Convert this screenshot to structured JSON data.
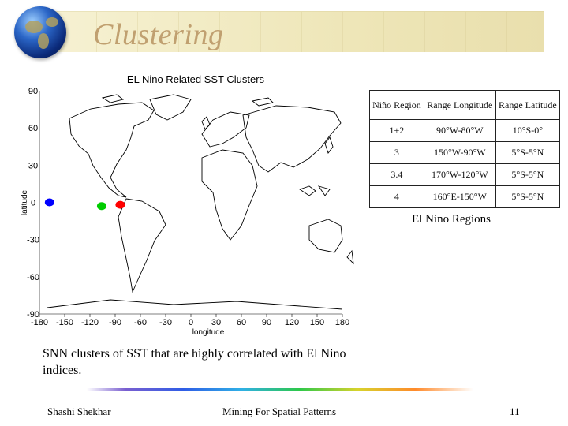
{
  "slide": {
    "title": "Clustering",
    "footer_left": "Shashi Shekhar",
    "footer_center": "Mining For Spatial Patterns",
    "page_number": "11"
  },
  "map": {
    "title": "EL Nino Related SST Clusters",
    "xlabel": "longitude",
    "ylabel": "latitude",
    "x_ticks": [
      "-180",
      "-150",
      "-120",
      "-90",
      "-60",
      "-30",
      "0",
      "30",
      "60",
      "90",
      "120",
      "150",
      "180"
    ],
    "y_ticks": [
      "90",
      "60",
      "30",
      "0",
      "-30",
      "-60",
      "-90"
    ],
    "clusters": [
      {
        "color": "#0000ff",
        "lon": -168,
        "lat": 0
      },
      {
        "color": "#00cc00",
        "lon": -106,
        "lat": -3
      },
      {
        "color": "#ff0000",
        "lon": -84,
        "lat": -2
      }
    ]
  },
  "regions_table": {
    "headers": [
      "Niño Region",
      "Range Longitude",
      "Range Latitude"
    ],
    "rows": [
      [
        "1+2",
        "90°W-80°W",
        "10°S-0°"
      ],
      [
        "3",
        "150°W-90°W",
        "5°S-5°N"
      ],
      [
        "3.4",
        "170°W-120°W",
        "5°S-5°N"
      ],
      [
        "4",
        "160°E-150°W",
        "5°S-5°N"
      ]
    ],
    "caption": "El Nino Regions"
  },
  "snn_caption": "SNN clusters of SST that are highly correlated with El Nino indices."
}
